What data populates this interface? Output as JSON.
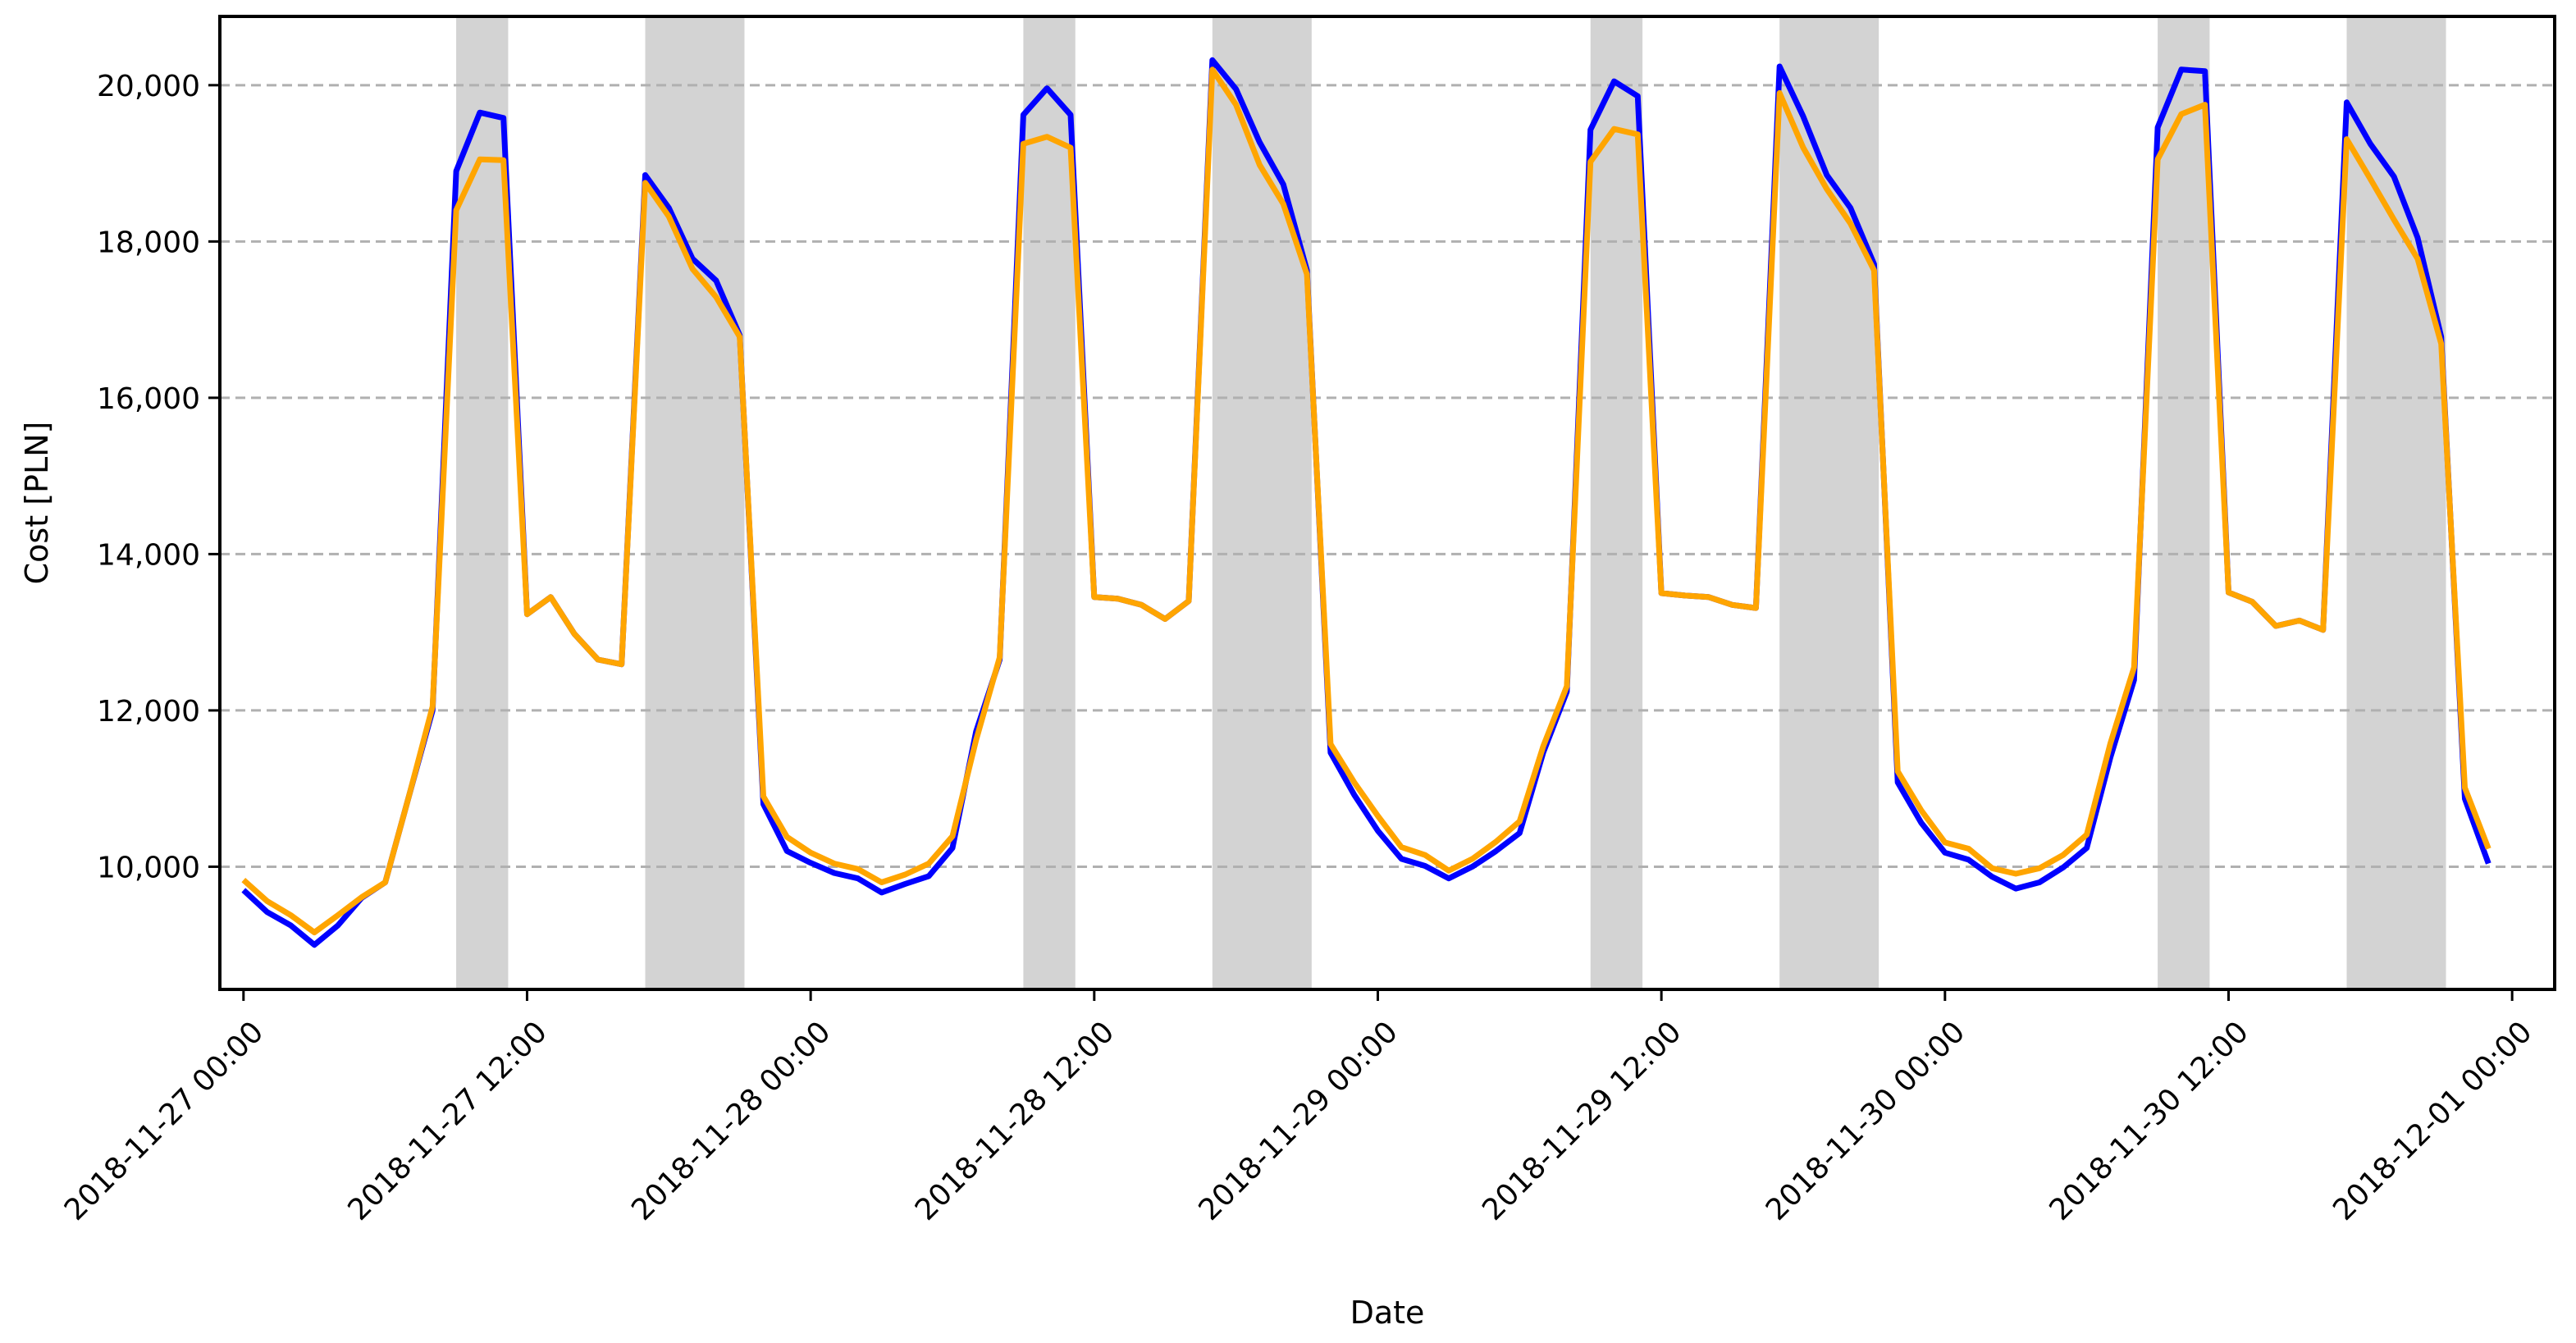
{
  "chart_data": {
    "type": "line",
    "title": "",
    "xlabel": "Date",
    "ylabel": "Cost [PLN]",
    "x_start": "2018-11-27 00:00",
    "x_step_hours": 1,
    "xlim": [
      "2018-11-26 23:00",
      "2018-12-01 01:48"
    ],
    "ylim": [
      8430,
      20880
    ],
    "grid": {
      "y": true,
      "x": false,
      "style": "dashed"
    },
    "legend": "none",
    "x_ticks": [
      "2018-11-27 00:00",
      "2018-11-27 12:00",
      "2018-11-28 00:00",
      "2018-11-28 12:00",
      "2018-11-29 00:00",
      "2018-11-29 12:00",
      "2018-11-30 00:00",
      "2018-11-30 12:00",
      "2018-12-01 00:00"
    ],
    "y_ticks": [
      10000,
      12000,
      14000,
      16000,
      18000,
      20000
    ],
    "y_tick_labels": [
      "10,000",
      "12,000",
      "14,000",
      "16,000",
      "18,000",
      "20,000"
    ],
    "shaded_bands": [
      [
        "2018-11-27 09:00",
        "2018-11-27 11:12"
      ],
      [
        "2018-11-27 17:00",
        "2018-11-27 21:12"
      ],
      [
        "2018-11-28 09:00",
        "2018-11-28 11:12"
      ],
      [
        "2018-11-28 17:00",
        "2018-11-28 21:12"
      ],
      [
        "2018-11-29 09:00",
        "2018-11-29 11:12"
      ],
      [
        "2018-11-29 17:00",
        "2018-11-29 21:12"
      ],
      [
        "2018-11-30 09:00",
        "2018-11-30 11:12"
      ],
      [
        "2018-11-30 17:00",
        "2018-11-30 21:12"
      ]
    ],
    "colors": {
      "series_1": "#0000ff",
      "series_2": "#ffa500",
      "band": "#d3d3d3",
      "grid": "#b0b0b0"
    },
    "series": [
      {
        "color": "#0000ff",
        "values": [
          9700,
          9420,
          9250,
          9000,
          9250,
          9600,
          9800,
          10900,
          12000,
          18900,
          19650,
          19580,
          13230,
          13450,
          12980,
          12650,
          12590,
          18850,
          18430,
          17780,
          17500,
          16800,
          10800,
          10200,
          10050,
          9920,
          9850,
          9670,
          9780,
          9880,
          10240,
          11730,
          12650,
          19620,
          19960,
          19620,
          13450,
          13430,
          13350,
          13170,
          13400,
          20320,
          19950,
          19270,
          18730,
          17630,
          11460,
          10920,
          10460,
          10100,
          10010,
          9850,
          10000,
          10200,
          10430,
          11460,
          12240,
          19430,
          20050,
          19860,
          13500,
          13470,
          13450,
          13350,
          13310,
          20240,
          19600,
          18850,
          18430,
          17710,
          11080,
          10560,
          10180,
          10090,
          9870,
          9720,
          9800,
          9990,
          10240,
          11400,
          12390,
          19460,
          20200,
          20180,
          13510,
          13390,
          13080,
          13150,
          13030,
          19780,
          19250,
          18830,
          18050,
          16780,
          10870,
          10040
        ]
      },
      {
        "color": "#ffa500",
        "values": [
          9830,
          9560,
          9380,
          9160,
          9380,
          9610,
          9800,
          10900,
          12050,
          18400,
          19050,
          19040,
          13230,
          13450,
          12980,
          12650,
          12590,
          18750,
          18320,
          17650,
          17290,
          16780,
          10900,
          10380,
          10180,
          10040,
          9970,
          9800,
          9900,
          10040,
          10390,
          11620,
          12680,
          19250,
          19340,
          19200,
          13450,
          13430,
          13350,
          13170,
          13400,
          20200,
          19750,
          18980,
          18480,
          17580,
          11570,
          11080,
          10650,
          10250,
          10150,
          9950,
          10100,
          10320,
          10580,
          11540,
          12310,
          19020,
          19440,
          19370,
          13500,
          13470,
          13450,
          13350,
          13310,
          19900,
          19200,
          18670,
          18230,
          17630,
          11220,
          10720,
          10310,
          10230,
          9980,
          9910,
          9980,
          10150,
          10410,
          11580,
          12550,
          19050,
          19630,
          19750,
          13510,
          13390,
          13080,
          13150,
          13030,
          19310,
          18800,
          18280,
          17780,
          16690,
          11010,
          10230
        ]
      }
    ]
  }
}
